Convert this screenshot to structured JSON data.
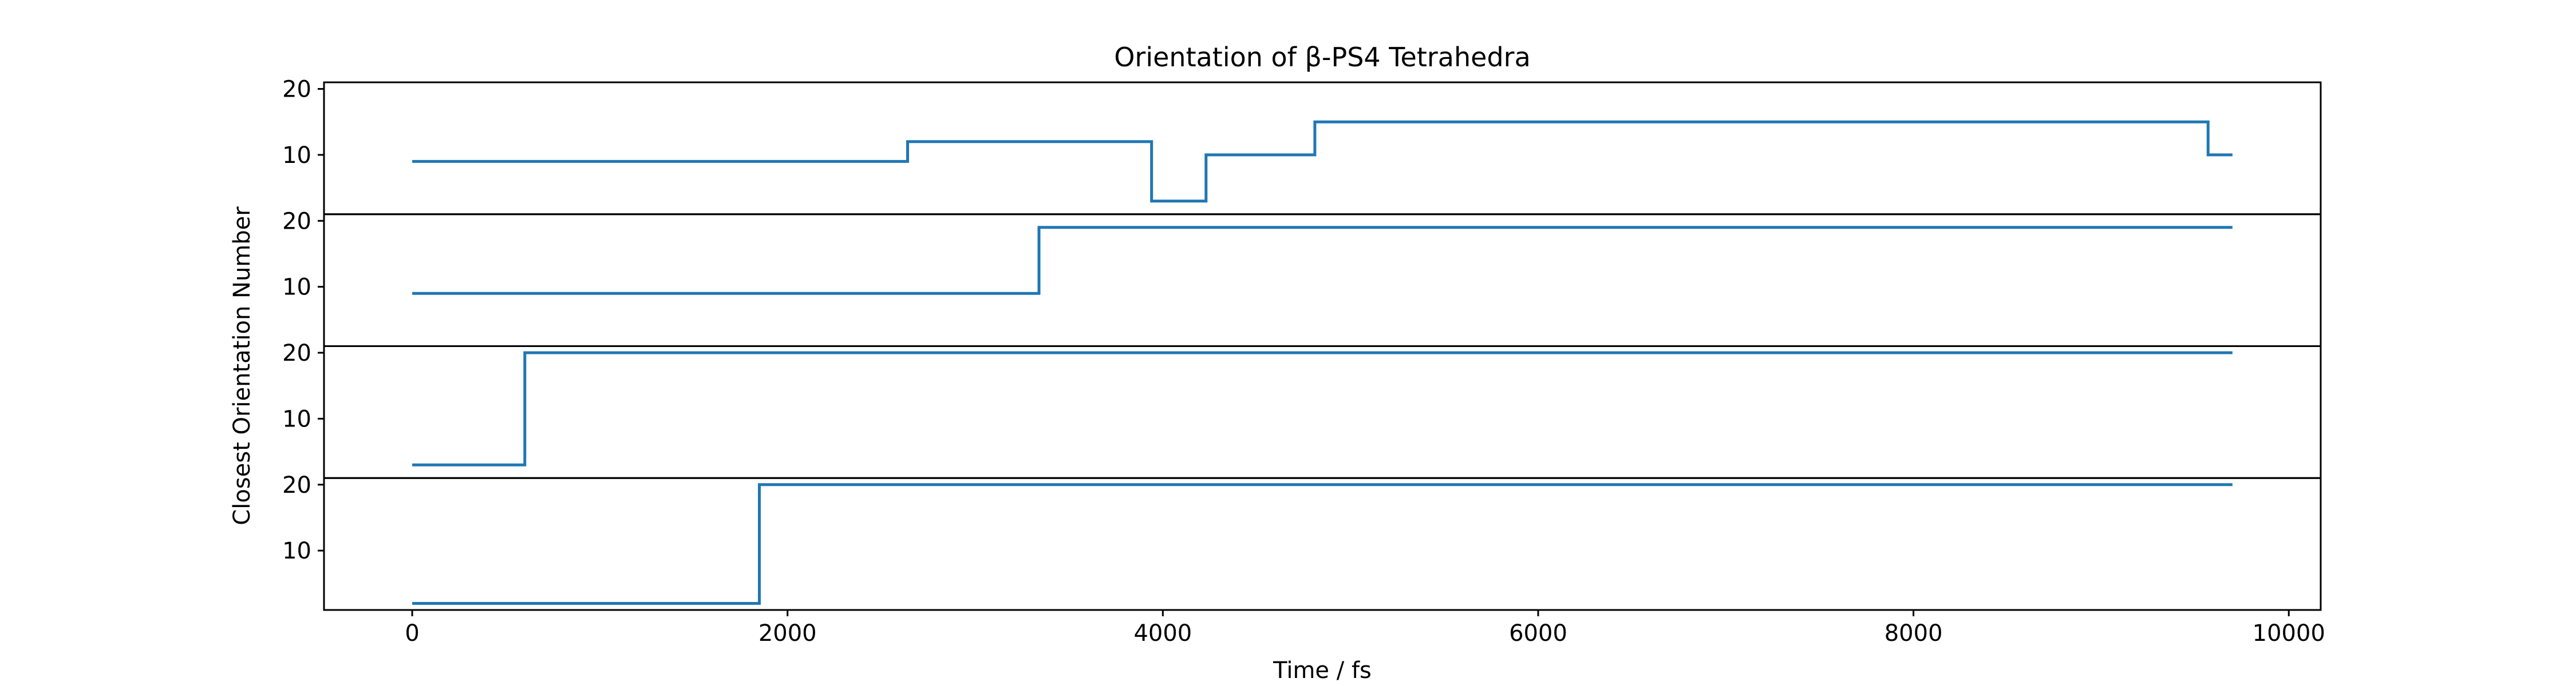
{
  "chart_data": {
    "type": "line",
    "title": "Orientation of β-PS4 Tetrahedra",
    "xlabel": "Time / fs",
    "ylabel": "Closest Orientation Number",
    "x_ticks": [
      0,
      2000,
      4000,
      6000,
      8000,
      10000
    ],
    "x_tick_labels": [
      "0",
      "2000",
      "4000",
      "6000",
      "8000",
      "10000"
    ],
    "xlim": [
      -470,
      10170
    ],
    "ylim": [
      1,
      21
    ],
    "y_ticks": [
      10,
      20
    ],
    "y_tick_labels": [
      "10",
      "20"
    ],
    "grid": false,
    "line_color": "#1f77b4",
    "series": [
      {
        "step": "post",
        "x": [
          0,
          2640,
          3940,
          4230,
          4810,
          9570,
          9700
        ],
        "values": [
          9,
          12,
          3,
          10,
          15,
          10,
          10
        ]
      },
      {
        "step": "post",
        "x": [
          0,
          3340,
          9700
        ],
        "values": [
          9,
          19,
          19
        ]
      },
      {
        "step": "post",
        "x": [
          0,
          600,
          9700
        ],
        "values": [
          3,
          20,
          20
        ]
      },
      {
        "step": "post",
        "x": [
          0,
          1850,
          9700
        ],
        "values": [
          2,
          20,
          20
        ]
      }
    ]
  }
}
